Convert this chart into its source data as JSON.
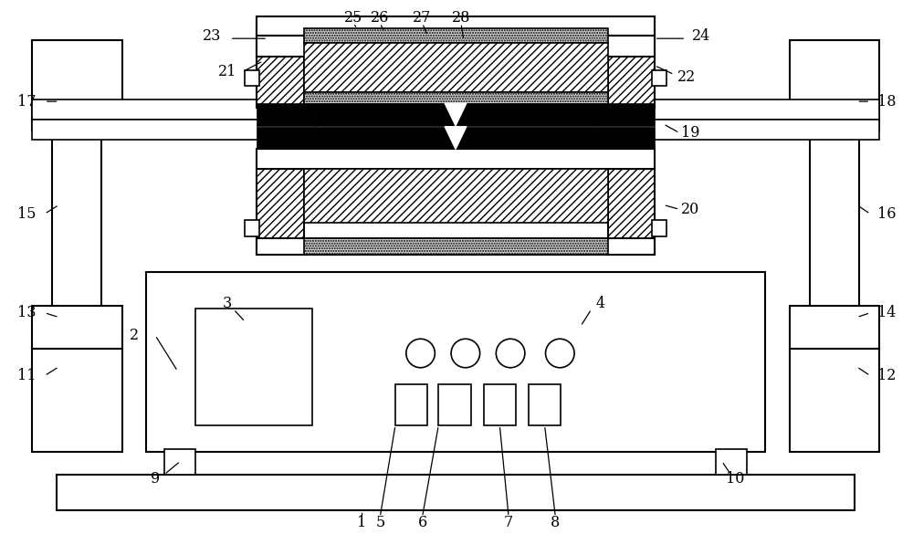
{
  "fig_width": 10.0,
  "fig_height": 5.85,
  "bg_color": "#ffffff",
  "lc": "#000000"
}
